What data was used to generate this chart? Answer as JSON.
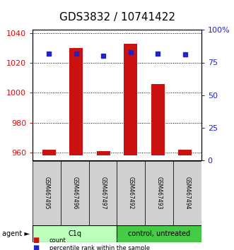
{
  "title": "GDS3832 / 10741422",
  "samples": [
    "GSM467495",
    "GSM467496",
    "GSM467497",
    "GSM467492",
    "GSM467493",
    "GSM467494"
  ],
  "count_values": [
    962,
    1030,
    961,
    1033,
    1006,
    962
  ],
  "percentile_values": [
    82,
    82,
    80,
    83,
    82,
    81
  ],
  "ylim_left": [
    955,
    1042
  ],
  "ylim_right": [
    0,
    100
  ],
  "yticks_left": [
    960,
    980,
    1000,
    1020,
    1040
  ],
  "ytick_labels_right": [
    "0",
    "25",
    "50",
    "75",
    "100%"
  ],
  "yticks_right": [
    0,
    25,
    50,
    75,
    100
  ],
  "bar_color": "#cc1111",
  "dot_color": "#2222cc",
  "bar_baseline": 958,
  "group_colors": [
    "#bbffbb",
    "#44cc44"
  ],
  "agent_groups": [
    {
      "label": "C1q",
      "start": 0,
      "end": 3
    },
    {
      "label": "control, untreated",
      "start": 3,
      "end": 6
    }
  ],
  "legend_items": [
    {
      "label": "count",
      "color": "#cc1111"
    },
    {
      "label": "percentile rank within the sample",
      "color": "#2222cc"
    }
  ],
  "background_color": "#ffffff",
  "title_fontsize": 11,
  "axis_color_left": "#cc1111",
  "axis_color_right": "#2222cc",
  "sample_box_color": "#d0d0d0"
}
